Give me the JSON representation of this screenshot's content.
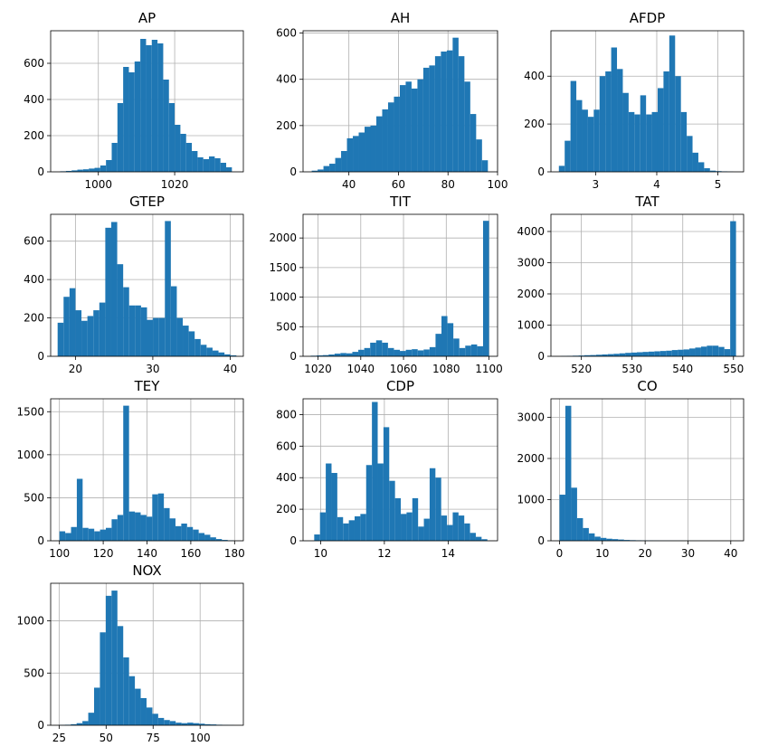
{
  "colors": {
    "bar": "#1f77b4",
    "grid": "#b0b0b0",
    "axis": "#000000",
    "background": "#ffffff"
  },
  "chart_data": [
    {
      "type": "bar",
      "title": "AP",
      "xlim": [
        987.5,
        1038
      ],
      "ylim": [
        0,
        780
      ],
      "grid": true,
      "xticks": [
        1000,
        1020
      ],
      "yticks": [
        0,
        200,
        400,
        600
      ],
      "bin_start": 990,
      "bin_width": 1.5,
      "values": [
        3,
        5,
        8,
        12,
        14,
        18,
        22,
        35,
        65,
        160,
        380,
        580,
        550,
        610,
        735,
        700,
        730,
        710,
        510,
        380,
        260,
        210,
        160,
        115,
        80,
        70,
        85,
        75,
        50,
        25
      ]
    },
    {
      "type": "bar",
      "title": "AH",
      "xlim": [
        21.5,
        100
      ],
      "ylim": [
        0,
        610
      ],
      "grid": true,
      "xticks": [
        40,
        60,
        80,
        100
      ],
      "yticks": [
        0,
        200,
        400,
        600
      ],
      "bin_start": 25,
      "bin_width": 2.37,
      "values": [
        5,
        10,
        25,
        35,
        60,
        90,
        145,
        155,
        170,
        195,
        200,
        240,
        270,
        300,
        325,
        375,
        390,
        360,
        400,
        450,
        460,
        500,
        520,
        525,
        580,
        500,
        390,
        250,
        140,
        50
      ]
    },
    {
      "type": "bar",
      "title": "AFDP",
      "xlim": [
        2.27,
        5.42
      ],
      "ylim": [
        0,
        590
      ],
      "grid": true,
      "xticks": [
        3,
        4,
        5
      ],
      "yticks": [
        0,
        200,
        400
      ],
      "bin_start": 2.4,
      "bin_width": 0.095,
      "values": [
        25,
        130,
        380,
        300,
        260,
        230,
        260,
        400,
        420,
        520,
        430,
        330,
        250,
        240,
        320,
        240,
        250,
        350,
        420,
        570,
        400,
        250,
        150,
        80,
        40,
        15,
        5,
        3,
        2,
        1
      ]
    },
    {
      "type": "bar",
      "title": "GTEP",
      "xlim": [
        16.8,
        41.7
      ],
      "ylim": [
        0,
        740
      ],
      "grid": true,
      "xticks": [
        20,
        30,
        40
      ],
      "yticks": [
        0,
        200,
        400,
        600
      ],
      "bin_start": 17.7,
      "bin_width": 0.77,
      "values": [
        175,
        310,
        355,
        240,
        185,
        210,
        240,
        280,
        670,
        700,
        480,
        360,
        265,
        265,
        255,
        190,
        200,
        200,
        705,
        365,
        200,
        160,
        130,
        90,
        60,
        45,
        30,
        20,
        10,
        5
      ]
    },
    {
      "type": "bar",
      "title": "TIT",
      "xlim": [
        1013,
        1104
      ],
      "ylim": [
        0,
        2400
      ],
      "grid": true,
      "xticks": [
        1020,
        1040,
        1060,
        1080,
        1100
      ],
      "yticks": [
        0,
        500,
        1000,
        1500,
        2000
      ],
      "bin_start": 1016.6,
      "bin_width": 2.78,
      "values": [
        10,
        15,
        20,
        30,
        45,
        55,
        50,
        75,
        110,
        140,
        230,
        270,
        230,
        140,
        110,
        90,
        110,
        120,
        100,
        115,
        155,
        380,
        680,
        560,
        300,
        140,
        180,
        200,
        170,
        2290
      ]
    },
    {
      "type": "bar",
      "title": "TAT",
      "xlim": [
        514,
        552
      ],
      "ylim": [
        0,
        4550
      ],
      "grid": true,
      "xticks": [
        520,
        530,
        540,
        550
      ],
      "yticks": [
        0,
        1000,
        2000,
        3000,
        4000
      ],
      "bin_start": 516,
      "bin_width": 1.15,
      "values": [
        10,
        15,
        20,
        25,
        35,
        40,
        50,
        60,
        70,
        80,
        95,
        110,
        120,
        130,
        140,
        150,
        160,
        170,
        180,
        200,
        210,
        220,
        250,
        280,
        310,
        340,
        340,
        300,
        230,
        4330
      ]
    },
    {
      "type": "bar",
      "title": "TEY",
      "xlim": [
        96,
        184
      ],
      "ylim": [
        0,
        1650
      ],
      "grid": true,
      "xticks": [
        100,
        120,
        140,
        160,
        180
      ],
      "yticks": [
        0,
        500,
        1000,
        1500
      ],
      "bin_start": 100,
      "bin_width": 2.65,
      "values": [
        110,
        90,
        160,
        720,
        150,
        140,
        110,
        130,
        150,
        250,
        300,
        1570,
        340,
        330,
        300,
        280,
        540,
        550,
        380,
        260,
        170,
        200,
        160,
        130,
        90,
        70,
        40,
        20,
        10,
        5
      ]
    },
    {
      "type": "bar",
      "title": "CDP",
      "xlim": [
        9.45,
        15.55
      ],
      "ylim": [
        0,
        900
      ],
      "grid": true,
      "xticks": [
        10,
        12,
        14
      ],
      "yticks": [
        0,
        200,
        400,
        600,
        800
      ],
      "bin_start": 9.8,
      "bin_width": 0.181,
      "values": [
        40,
        180,
        490,
        430,
        150,
        110,
        130,
        155,
        170,
        480,
        880,
        490,
        720,
        380,
        270,
        170,
        180,
        270,
        90,
        140,
        460,
        400,
        160,
        100,
        180,
        160,
        110,
        50,
        25,
        10
      ]
    },
    {
      "type": "bar",
      "title": "CO",
      "xlim": [
        -2,
        43
      ],
      "ylim": [
        0,
        3450
      ],
      "grid": true,
      "xticks": [
        0,
        10,
        20,
        30,
        40
      ],
      "yticks": [
        0,
        1000,
        2000,
        3000
      ],
      "bin_start": 0,
      "bin_width": 1.37,
      "values": [
        1120,
        3280,
        1290,
        550,
        310,
        180,
        100,
        70,
        50,
        40,
        30,
        20,
        15,
        12,
        10,
        8,
        6,
        5,
        4,
        3,
        3,
        2,
        2,
        2,
        1,
        1,
        1,
        1,
        1,
        1
      ]
    },
    {
      "type": "bar",
      "title": "NOX",
      "xlim": [
        20.5,
        123
      ],
      "ylim": [
        0,
        1360
      ],
      "grid": true,
      "xticks": [
        25,
        50,
        75,
        100
      ],
      "yticks": [
        0,
        500,
        1000
      ],
      "bin_start": 25,
      "bin_width": 3.1,
      "values": [
        3,
        5,
        10,
        20,
        40,
        120,
        360,
        890,
        1240,
        1290,
        950,
        650,
        470,
        350,
        260,
        170,
        110,
        70,
        50,
        40,
        25,
        20,
        25,
        20,
        15,
        10,
        8,
        5,
        3,
        2
      ]
    }
  ]
}
